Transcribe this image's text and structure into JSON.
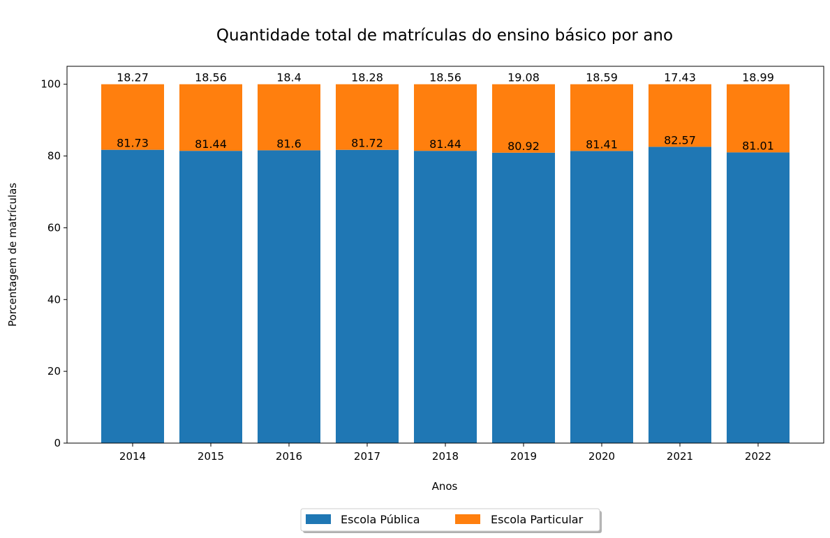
{
  "chart_data": {
    "type": "bar",
    "stacked": true,
    "title": "Quantidade total de matrículas do ensino básico por ano",
    "xlabel": "Anos",
    "ylabel": "Porcentagem de matrículas",
    "categories": [
      "2014",
      "2015",
      "2016",
      "2017",
      "2018",
      "2019",
      "2020",
      "2021",
      "2022"
    ],
    "ylim": [
      0,
      105
    ],
    "yticks": [
      0,
      20,
      40,
      60,
      80,
      100
    ],
    "grid": false,
    "legend_position": "bottom-center",
    "series": [
      {
        "name": "Escola Pública",
        "color": "#1f77b4",
        "values": [
          81.73,
          81.44,
          81.6,
          81.72,
          81.44,
          80.92,
          81.41,
          82.57,
          81.01
        ],
        "labels": [
          "81.73",
          "81.44",
          "81.6",
          "81.72",
          "81.44",
          "80.92",
          "81.41",
          "82.57",
          "81.01"
        ]
      },
      {
        "name": "Escola Particular",
        "color": "#ff7f0e",
        "values": [
          18.27,
          18.56,
          18.4,
          18.28,
          18.56,
          19.08,
          18.59,
          17.43,
          18.99
        ],
        "labels": [
          "18.27",
          "18.56",
          "18.4",
          "18.28",
          "18.56",
          "19.08",
          "18.59",
          "17.43",
          "18.99"
        ]
      }
    ]
  }
}
